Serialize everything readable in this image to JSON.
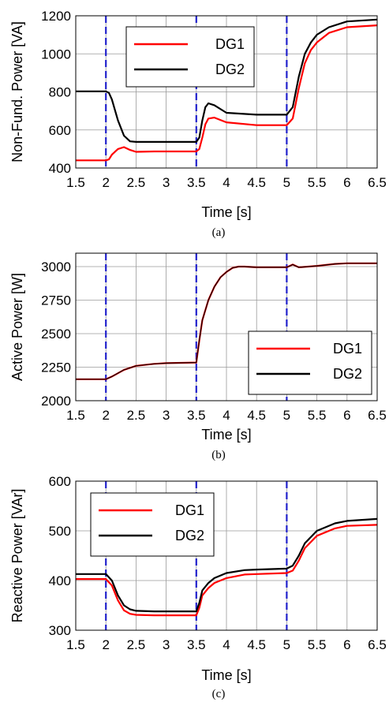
{
  "chart_data": [
    {
      "type": "line",
      "caption": "(a)",
      "xlabel": "Time [s]",
      "ylabel": "Non-Fund. Power [VA]",
      "xlim": [
        1.5,
        6.5
      ],
      "ylim": [
        400,
        1200
      ],
      "xticks": [
        "1.5",
        "2",
        "2.5",
        "3",
        "3.5",
        "4",
        "4.5",
        "5",
        "5.5",
        "6",
        "6.5"
      ],
      "yticks": [
        "400",
        "600",
        "800",
        "1000",
        "1200"
      ],
      "vlines": [
        2,
        3.5,
        5
      ],
      "legend": "top-left",
      "series": [
        {
          "name": "DG1",
          "color": "#ff0000",
          "x": [
            1.5,
            2.0,
            2.05,
            2.1,
            2.2,
            2.3,
            2.4,
            2.5,
            2.8,
            3.0,
            3.4,
            3.5,
            3.55,
            3.6,
            3.65,
            3.7,
            3.8,
            4.0,
            4.5,
            5.0,
            5.1,
            5.2,
            5.3,
            5.4,
            5.5,
            5.7,
            6.0,
            6.5
          ],
          "y": [
            440,
            440,
            445,
            470,
            500,
            510,
            495,
            485,
            487,
            487,
            487,
            487,
            500,
            560,
            630,
            660,
            665,
            640,
            625,
            625,
            660,
            820,
            950,
            1020,
            1060,
            1110,
            1140,
            1150
          ]
        },
        {
          "name": "DG2",
          "color": "#000000",
          "x": [
            1.5,
            2.0,
            2.05,
            2.1,
            2.2,
            2.3,
            2.4,
            2.5,
            2.8,
            3.0,
            3.4,
            3.5,
            3.55,
            3.6,
            3.65,
            3.7,
            3.8,
            4.0,
            4.5,
            5.0,
            5.1,
            5.2,
            5.3,
            5.4,
            5.5,
            5.7,
            6.0,
            6.5
          ],
          "y": [
            803,
            803,
            795,
            760,
            650,
            570,
            540,
            537,
            537,
            537,
            537,
            537,
            560,
            650,
            720,
            740,
            730,
            690,
            680,
            680,
            720,
            880,
            1000,
            1060,
            1100,
            1140,
            1170,
            1180
          ]
        }
      ]
    },
    {
      "type": "line",
      "caption": "(b)",
      "xlabel": "Time [s]",
      "ylabel": "Active Power [W]",
      "xlim": [
        1.5,
        6.5
      ],
      "ylim": [
        2000,
        3100
      ],
      "xticks": [
        "1.5",
        "2",
        "2.5",
        "3",
        "3.5",
        "4",
        "4.5",
        "5",
        "5.5",
        "6",
        "6.5"
      ],
      "yticks": [
        "2000",
        "2250",
        "2500",
        "2750",
        "3000"
      ],
      "vlines": [
        2,
        3.5,
        5
      ],
      "legend": "bottom-right",
      "series": [
        {
          "name": "DG1",
          "color": "#ff0000",
          "x": [
            1.5,
            2.0,
            2.1,
            2.3,
            2.5,
            2.8,
            3.0,
            3.5,
            3.55,
            3.6,
            3.7,
            3.8,
            3.9,
            4.0,
            4.1,
            4.2,
            4.3,
            4.5,
            5.0,
            5.1,
            5.2,
            5.5,
            5.8,
            6.0,
            6.5
          ],
          "y": [
            2160,
            2160,
            2180,
            2230,
            2260,
            2275,
            2280,
            2285,
            2450,
            2600,
            2750,
            2850,
            2920,
            2960,
            2990,
            3000,
            3000,
            2995,
            2995,
            3015,
            2995,
            3005,
            3020,
            3025,
            3025
          ]
        },
        {
          "name": "DG2",
          "color": "#000000",
          "x": [
            1.5,
            2.0,
            2.1,
            2.3,
            2.5,
            2.8,
            3.0,
            3.5,
            3.55,
            3.6,
            3.7,
            3.8,
            3.9,
            4.0,
            4.1,
            4.2,
            4.3,
            4.5,
            5.0,
            5.1,
            5.2,
            5.5,
            5.8,
            6.0,
            6.5
          ],
          "y": [
            2160,
            2160,
            2180,
            2230,
            2260,
            2275,
            2280,
            2285,
            2450,
            2600,
            2750,
            2850,
            2920,
            2960,
            2990,
            3000,
            3000,
            2995,
            2995,
            3015,
            2995,
            3005,
            3020,
            3025,
            3025
          ]
        }
      ]
    },
    {
      "type": "line",
      "caption": "(c)",
      "xlabel": "Time [s]",
      "ylabel": "Reactive Power [VAr]",
      "xlim": [
        1.5,
        6.5
      ],
      "ylim": [
        300,
        600
      ],
      "xticks": [
        "1.5",
        "2",
        "2.5",
        "3",
        "3.5",
        "4",
        "4.5",
        "5",
        "5.5",
        "6",
        "6.5"
      ],
      "yticks": [
        "300",
        "400",
        "500",
        "600"
      ],
      "vlines": [
        2,
        3.5,
        5
      ],
      "legend": "top-left",
      "series": [
        {
          "name": "DG1",
          "color": "#ff0000",
          "x": [
            1.5,
            2.0,
            2.1,
            2.2,
            2.3,
            2.4,
            2.5,
            2.8,
            3.0,
            3.4,
            3.5,
            3.55,
            3.6,
            3.7,
            3.8,
            4.0,
            4.3,
            4.5,
            5.0,
            5.1,
            5.2,
            5.3,
            5.5,
            5.8,
            6.0,
            6.5
          ],
          "y": [
            403,
            403,
            390,
            360,
            340,
            333,
            331,
            330,
            330,
            330,
            330,
            345,
            370,
            385,
            395,
            405,
            412,
            413,
            415,
            420,
            440,
            465,
            490,
            505,
            510,
            512
          ]
        },
        {
          "name": "DG2",
          "color": "#000000",
          "x": [
            1.5,
            2.0,
            2.1,
            2.2,
            2.3,
            2.4,
            2.5,
            2.8,
            3.0,
            3.4,
            3.5,
            3.55,
            3.6,
            3.7,
            3.8,
            4.0,
            4.3,
            4.5,
            5.0,
            5.1,
            5.2,
            5.3,
            5.5,
            5.8,
            6.0,
            6.5
          ],
          "y": [
            413,
            413,
            400,
            370,
            350,
            342,
            339,
            338,
            338,
            338,
            338,
            355,
            380,
            395,
            405,
            415,
            421,
            422,
            424,
            430,
            450,
            475,
            500,
            515,
            520,
            524
          ]
        }
      ]
    }
  ]
}
